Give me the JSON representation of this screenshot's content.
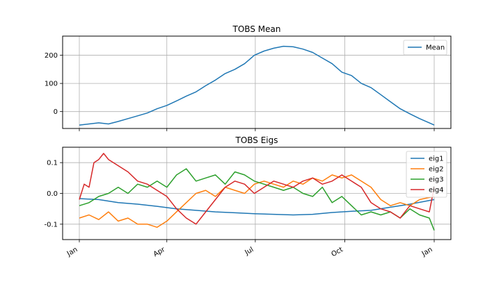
{
  "chart_data": [
    {
      "type": "line",
      "title": "TOBS Mean",
      "xlabel": "",
      "ylabel": "",
      "x_days": [
        0,
        365
      ],
      "ylim": [
        -60,
        268
      ],
      "yticks": [
        0,
        100,
        200
      ],
      "grid": true,
      "legend": "top-right",
      "series": [
        {
          "name": "Mean",
          "color": "#1f77b4",
          "x": [
            0,
            10,
            20,
            30,
            40,
            50,
            60,
            70,
            80,
            90,
            100,
            110,
            120,
            130,
            140,
            150,
            160,
            170,
            175,
            180,
            190,
            200,
            210,
            220,
            230,
            240,
            250,
            260,
            270,
            280,
            290,
            300,
            310,
            320,
            330,
            340,
            350,
            360,
            365
          ],
          "y": [
            -48,
            -44,
            -40,
            -44,
            -35,
            -25,
            -15,
            -5,
            10,
            22,
            38,
            55,
            70,
            92,
            112,
            135,
            150,
            170,
            185,
            200,
            215,
            225,
            232,
            230,
            222,
            210,
            190,
            170,
            140,
            128,
            100,
            85,
            60,
            35,
            10,
            -8,
            -25,
            -40,
            -48
          ]
        }
      ]
    },
    {
      "type": "line",
      "title": "TOBS Eigs",
      "xlabel": "",
      "ylabel": "",
      "x_days": [
        0,
        365
      ],
      "ylim": [
        -0.15,
        0.15
      ],
      "yticks": [
        -0.1,
        0.0,
        0.1
      ],
      "xticks": [
        {
          "label": "Jan",
          "day": 0
        },
        {
          "label": "Apr",
          "day": 90
        },
        {
          "label": "Jul",
          "day": 181
        },
        {
          "label": "Oct",
          "day": 273
        },
        {
          "label": "Jan",
          "day": 365
        }
      ],
      "grid": true,
      "legend": "top-right",
      "series": [
        {
          "name": "eig1",
          "color": "#1f77b4",
          "x": [
            0,
            20,
            40,
            60,
            80,
            100,
            120,
            140,
            160,
            180,
            200,
            220,
            240,
            260,
            280,
            300,
            320,
            340,
            365
          ],
          "y": [
            -0.017,
            -0.02,
            -0.03,
            -0.035,
            -0.042,
            -0.05,
            -0.055,
            -0.06,
            -0.063,
            -0.066,
            -0.068,
            -0.07,
            -0.068,
            -0.062,
            -0.058,
            -0.055,
            -0.045,
            -0.035,
            -0.02
          ]
        },
        {
          "name": "eig2",
          "color": "#ff7f0e",
          "x": [
            0,
            10,
            20,
            30,
            40,
            50,
            60,
            70,
            80,
            90,
            100,
            110,
            120,
            130,
            140,
            150,
            160,
            170,
            180,
            190,
            200,
            210,
            220,
            230,
            240,
            250,
            260,
            270,
            280,
            290,
            300,
            310,
            320,
            330,
            340,
            350,
            365
          ],
          "y": [
            -0.08,
            -0.07,
            -0.085,
            -0.06,
            -0.09,
            -0.08,
            -0.1,
            -0.1,
            -0.11,
            -0.09,
            -0.06,
            -0.03,
            0.0,
            0.01,
            -0.01,
            0.02,
            0.01,
            0.0,
            0.03,
            0.04,
            0.03,
            0.02,
            0.04,
            0.03,
            0.05,
            0.04,
            0.06,
            0.05,
            0.06,
            0.04,
            0.02,
            -0.02,
            -0.04,
            -0.03,
            -0.04,
            -0.02,
            -0.01
          ]
        },
        {
          "name": "eig3",
          "color": "#2ca02c",
          "x": [
            0,
            10,
            20,
            30,
            40,
            50,
            60,
            70,
            80,
            90,
            100,
            110,
            120,
            130,
            140,
            150,
            160,
            170,
            180,
            190,
            200,
            210,
            220,
            230,
            240,
            250,
            260,
            270,
            280,
            290,
            300,
            310,
            320,
            330,
            340,
            350,
            360,
            365
          ],
          "y": [
            -0.04,
            -0.03,
            -0.01,
            0.0,
            0.02,
            0.0,
            0.03,
            0.02,
            0.04,
            0.02,
            0.06,
            0.08,
            0.04,
            0.05,
            0.06,
            0.03,
            0.07,
            0.06,
            0.04,
            0.03,
            0.02,
            0.01,
            0.02,
            0.0,
            -0.01,
            0.02,
            -0.03,
            -0.01,
            -0.04,
            -0.07,
            -0.06,
            -0.07,
            -0.06,
            -0.08,
            -0.05,
            -0.07,
            -0.08,
            -0.12
          ]
        },
        {
          "name": "eig4",
          "color": "#d62728",
          "x": [
            0,
            5,
            10,
            15,
            20,
            25,
            30,
            40,
            50,
            60,
            70,
            80,
            90,
            100,
            110,
            120,
            130,
            140,
            150,
            160,
            170,
            180,
            190,
            200,
            210,
            220,
            230,
            240,
            250,
            260,
            270,
            280,
            290,
            300,
            310,
            320,
            330,
            340,
            350,
            360,
            365
          ],
          "y": [
            -0.02,
            0.03,
            0.02,
            0.1,
            0.11,
            0.13,
            0.11,
            0.09,
            0.07,
            0.04,
            0.03,
            0.01,
            -0.01,
            -0.05,
            -0.08,
            -0.1,
            -0.06,
            -0.02,
            0.02,
            0.04,
            0.03,
            0.0,
            0.02,
            0.04,
            0.03,
            0.02,
            0.04,
            0.05,
            0.03,
            0.04,
            0.06,
            0.04,
            0.02,
            -0.03,
            -0.05,
            -0.06,
            -0.08,
            -0.04,
            -0.05,
            -0.06,
            0.02
          ]
        }
      ]
    }
  ]
}
